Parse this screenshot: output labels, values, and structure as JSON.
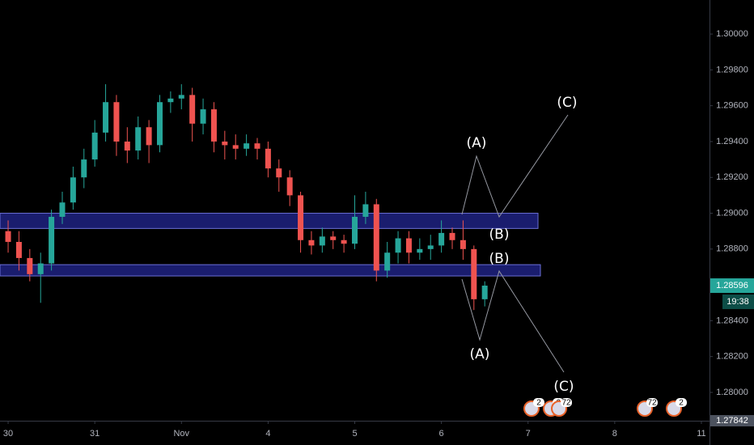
{
  "chart_data": {
    "type": "candlestick",
    "up_color": "#26a69a",
    "down_color": "#ef5350",
    "xlim": [
      -0.75,
      64.75
    ],
    "xticks": [
      {
        "value": 0,
        "label": "30"
      },
      {
        "value": 8,
        "label": "31"
      },
      {
        "value": 16,
        "label": "Nov"
      },
      {
        "value": 24,
        "label": "4"
      },
      {
        "value": 32,
        "label": "5"
      },
      {
        "value": 40,
        "label": "6"
      },
      {
        "value": 48,
        "label": "7"
      },
      {
        "value": 56,
        "label": "8"
      },
      {
        "value": 64,
        "label": "11"
      }
    ],
    "ylim": [
      1.27842,
      1.3019
    ],
    "yticks": [
      {
        "value": 1.28,
        "label": "1.28000"
      },
      {
        "value": 1.282,
        "label": "1.28200"
      },
      {
        "value": 1.284,
        "label": "1.28400"
      },
      {
        "value": 1.286,
        "label": "1.28600"
      },
      {
        "value": 1.288,
        "label": "1.28800"
      },
      {
        "value": 1.29,
        "label": "1.29000"
      },
      {
        "value": 1.292,
        "label": "1.29200"
      },
      {
        "value": 1.294,
        "label": "1.29400"
      },
      {
        "value": 1.296,
        "label": "1.29600"
      },
      {
        "value": 1.298,
        "label": "1.29800"
      },
      {
        "value": 1.3,
        "label": "1.30000"
      }
    ],
    "open": [
      1.289,
      1.2884,
      1.2875,
      1.2866,
      1.2872,
      1.2898,
      1.2906,
      1.292,
      1.293,
      1.2945,
      1.2962,
      1.294,
      1.2935,
      1.2948,
      1.2938,
      1.2962,
      1.2964,
      1.2966,
      1.295,
      1.2958,
      1.294,
      1.2938,
      1.2936,
      1.2939,
      1.2936,
      1.2925,
      1.292,
      1.291,
      1.2885,
      1.2882,
      1.2887,
      1.2885,
      1.2883,
      1.2898,
      1.2905,
      1.2868,
      1.2878,
      1.2886,
      1.2878,
      1.288,
      1.2882,
      1.2889,
      1.2885,
      1.288,
      1.2852
    ],
    "high": [
      1.2896,
      1.289,
      1.288,
      1.2878,
      1.2902,
      1.2912,
      1.2926,
      1.2936,
      1.2952,
      1.2972,
      1.2966,
      1.2948,
      1.2954,
      1.2952,
      1.2966,
      1.2968,
      1.2972,
      1.297,
      1.2964,
      1.2962,
      1.2946,
      1.2944,
      1.2944,
      1.2942,
      1.294,
      1.293,
      1.2924,
      1.2912,
      1.289,
      1.2892,
      1.289,
      1.2888,
      1.291,
      1.2912,
      1.2908,
      1.2884,
      1.289,
      1.289,
      1.2886,
      1.2888,
      1.2896,
      1.2892,
      1.2896,
      1.2882,
      1.2862
    ],
    "low": [
      1.2878,
      1.2868,
      1.2862,
      1.285,
      1.2868,
      1.2894,
      1.2902,
      1.2914,
      1.2926,
      1.294,
      1.2932,
      1.2928,
      1.293,
      1.2928,
      1.2934,
      1.2956,
      1.2958,
      1.294,
      1.2944,
      1.2934,
      1.293,
      1.293,
      1.2932,
      1.293,
      1.292,
      1.2912,
      1.2904,
      1.2878,
      1.2877,
      1.2878,
      1.288,
      1.2878,
      1.288,
      1.2894,
      1.2862,
      1.2864,
      1.2872,
      1.2872,
      1.2874,
      1.2874,
      1.2878,
      1.288,
      1.2874,
      1.2846,
      1.2848
    ],
    "close": [
      1.2884,
      1.2875,
      1.2866,
      1.2872,
      1.2898,
      1.2906,
      1.292,
      1.293,
      1.2945,
      1.2962,
      1.294,
      1.2935,
      1.2948,
      1.2938,
      1.2962,
      1.2964,
      1.2966,
      1.295,
      1.2958,
      1.294,
      1.2938,
      1.2936,
      1.2939,
      1.2936,
      1.2925,
      1.292,
      1.291,
      1.2885,
      1.2882,
      1.2887,
      1.2885,
      1.2883,
      1.2898,
      1.2905,
      1.2868,
      1.2878,
      1.2886,
      1.2878,
      1.288,
      1.2882,
      1.2889,
      1.2885,
      1.288,
      1.2852,
      1.28596
    ],
    "zones": [
      {
        "top": 1.29,
        "bottom": 1.28915
      },
      {
        "top": 1.28713,
        "bottom": 1.2865
      }
    ],
    "countdown": "19:38",
    "bottom_price": 1.27842,
    "annotations": [
      "(A)",
      "(B)",
      "(C)",
      "(B)",
      "(A)",
      "(C)"
    ],
    "events": [
      "2",
      "6",
      "72",
      "72",
      "2"
    ]
  }
}
